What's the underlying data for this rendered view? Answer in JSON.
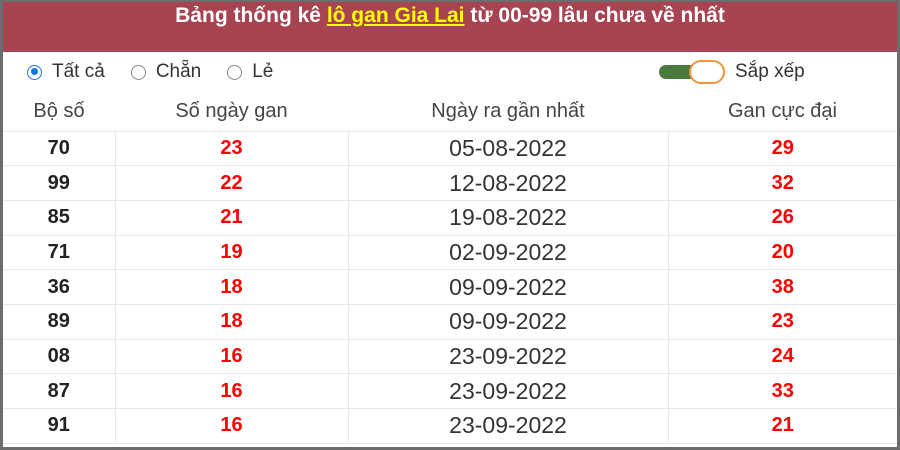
{
  "title": {
    "prefix": "Bảng thống kê ",
    "link": "lô gan Gia Lai",
    "suffix": " từ 00-99 lâu chưa về nhất"
  },
  "filters": [
    {
      "label": "Tất cả",
      "selected": true
    },
    {
      "label": "Chẵn",
      "selected": false
    },
    {
      "label": "Lẻ",
      "selected": false
    }
  ],
  "sort": {
    "label": "Sắp xếp",
    "on": true
  },
  "colors": {
    "header_bg": "#a84452",
    "link": "#ffff00",
    "value_red": "#ff0000",
    "toggle_track": "#4a7a3f",
    "toggle_knob_border": "#f0943a"
  },
  "table": {
    "headers": [
      "Bộ số",
      "Số ngày gan",
      "Ngày ra gần nhất",
      "Gan cực đại"
    ],
    "rows": [
      [
        "70",
        "23",
        "05-08-2022",
        "29"
      ],
      [
        "99",
        "22",
        "12-08-2022",
        "32"
      ],
      [
        "85",
        "21",
        "19-08-2022",
        "26"
      ],
      [
        "71",
        "19",
        "02-09-2022",
        "20"
      ],
      [
        "36",
        "18",
        "09-09-2022",
        "38"
      ],
      [
        "89",
        "18",
        "09-09-2022",
        "23"
      ],
      [
        "08",
        "16",
        "23-09-2022",
        "24"
      ],
      [
        "87",
        "16",
        "23-09-2022",
        "33"
      ],
      [
        "91",
        "16",
        "23-09-2022",
        "21"
      ]
    ]
  }
}
